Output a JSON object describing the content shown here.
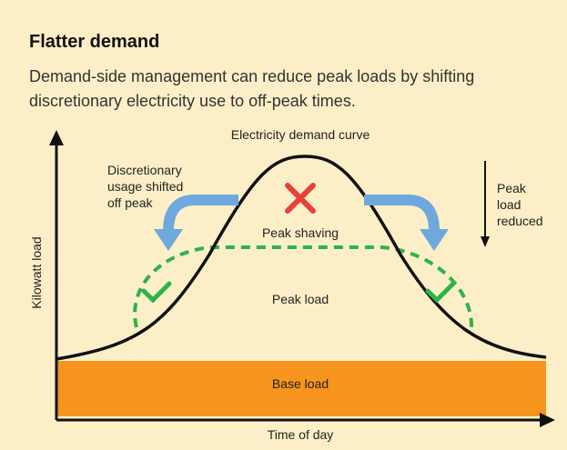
{
  "title": "Flatter demand",
  "subtitle": [
    "Demand-side management can reduce peak loads by shifting",
    "discretionary electricity use to off-peak times."
  ],
  "diagram": {
    "curve_label": "Electricity demand curve",
    "shifted_label": [
      "Discretionary",
      "usage shifted",
      "off peak"
    ],
    "reduced_label": [
      "Peak",
      "load",
      "reduced"
    ],
    "peak_shaving": "Peak shaving",
    "peak_load": "Peak load",
    "base_load": "Base load",
    "y_axis": "Kilowatt load",
    "x_axis": "Time of day"
  }
}
